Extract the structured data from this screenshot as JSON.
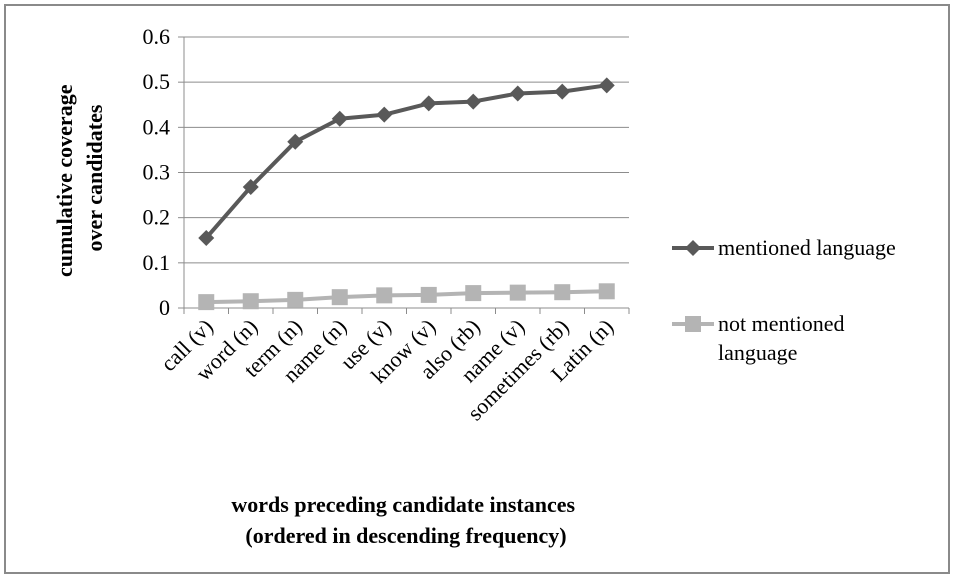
{
  "chart_data": {
    "type": "line",
    "categories": [
      "call (v)",
      "word (n)",
      "term (n)",
      "name (n)",
      "use (v)",
      "know (v)",
      "also (rb)",
      "name (v)",
      "sometimes (rb)",
      "Latin (n)"
    ],
    "series": [
      {
        "name": "mentioned language",
        "color": "#595959",
        "marker": "diamond",
        "values": [
          0.155,
          0.268,
          0.368,
          0.419,
          0.428,
          0.453,
          0.457,
          0.475,
          0.479,
          0.493
        ]
      },
      {
        "name_lines": [
          "not mentioned",
          "language"
        ],
        "color": "#b4b4b4",
        "marker": "square",
        "values": [
          0.013,
          0.015,
          0.018,
          0.024,
          0.028,
          0.029,
          0.033,
          0.034,
          0.035,
          0.037
        ]
      }
    ],
    "y_ticks": [
      "0",
      "0.1",
      "0.2",
      "0.3",
      "0.4",
      "0.5",
      "0.6"
    ],
    "ylim": [
      0,
      0.6
    ],
    "ylabel_lines": [
      "cumulative coverage",
      "over candidates"
    ],
    "xlabel_lines": [
      "words preceding candidate instances",
      "(ordered in descending frequency)"
    ],
    "grid": "horizontal",
    "legend_position": "right"
  }
}
